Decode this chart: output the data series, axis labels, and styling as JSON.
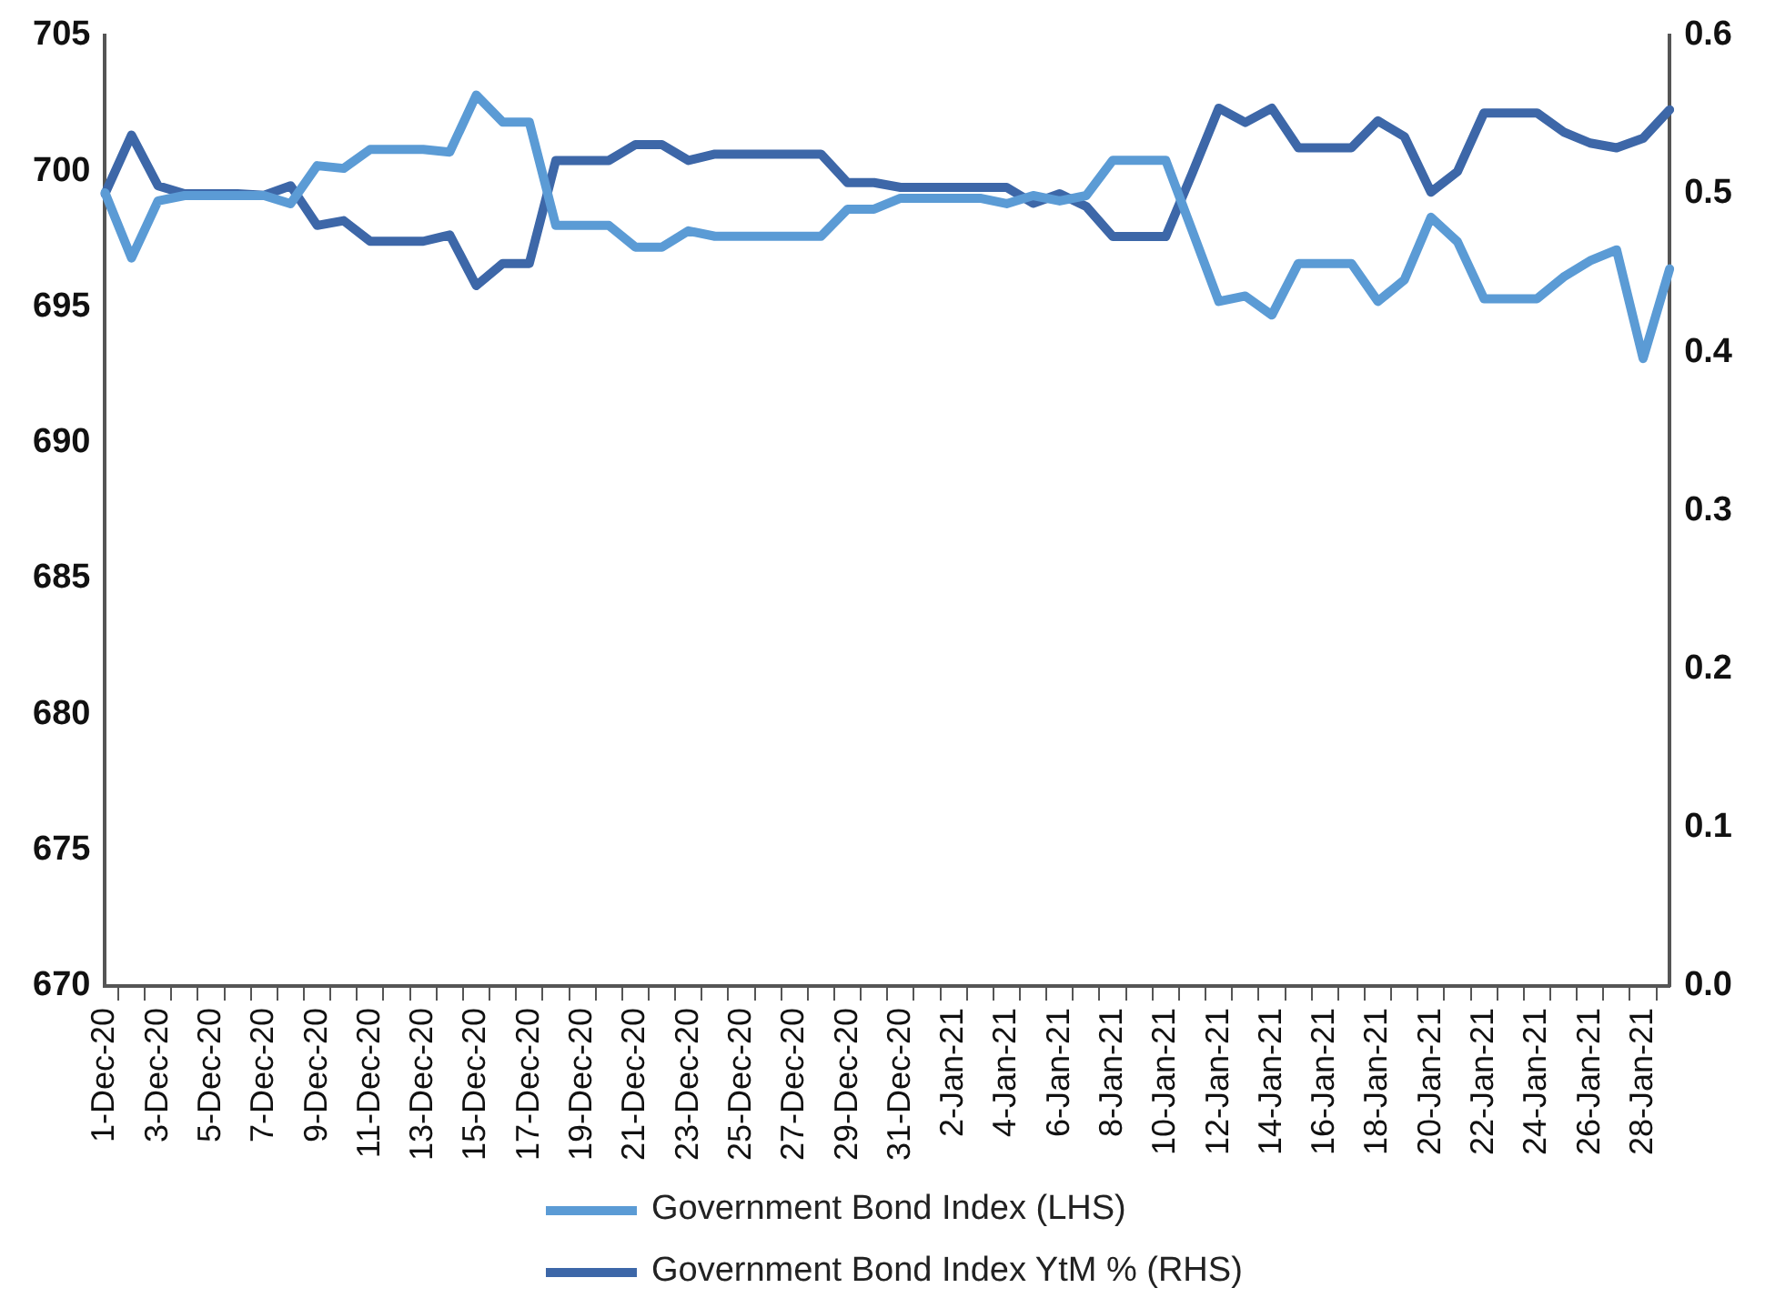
{
  "chart_data": {
    "type": "line",
    "categories": [
      "1-Dec-20",
      null,
      "3-Dec-20",
      null,
      "5-Dec-20",
      null,
      "7-Dec-20",
      null,
      "9-Dec-20",
      null,
      "11-Dec-20",
      null,
      "13-Dec-20",
      null,
      "15-Dec-20",
      null,
      "17-Dec-20",
      null,
      "19-Dec-20",
      null,
      "21-Dec-20",
      null,
      "23-Dec-20",
      null,
      "25-Dec-20",
      null,
      "27-Dec-20",
      null,
      "29-Dec-20",
      null,
      "31-Dec-20",
      null,
      "2-Jan-21",
      null,
      "4-Jan-21",
      null,
      "6-Jan-21",
      null,
      "8-Jan-21",
      null,
      "10-Jan-21",
      null,
      "12-Jan-21",
      null,
      "14-Jan-21",
      null,
      "16-Jan-21",
      null,
      "18-Jan-21",
      null,
      "20-Jan-21",
      null,
      "22-Jan-21",
      null,
      "24-Jan-21",
      null,
      "26-Jan-21",
      null,
      "28-Jan-21",
      null
    ],
    "series": [
      {
        "name": "Government Bond Index (LHS)",
        "color": "#5b9bd5",
        "values": [
          699.2,
          696.8,
          698.9,
          699.1,
          699.1,
          699.1,
          699.1,
          698.8,
          700.2,
          700.1,
          700.8,
          700.8,
          700.8,
          700.7,
          702.8,
          701.8,
          701.8,
          698.0,
          698.0,
          698.0,
          697.2,
          697.2,
          697.8,
          697.6,
          697.6,
          697.6,
          697.6,
          697.6,
          698.6,
          698.6,
          699.0,
          699.0,
          699.0,
          699.0,
          698.8,
          699.1,
          698.9,
          699.1,
          700.4,
          700.4,
          700.4,
          697.8,
          695.2,
          695.4,
          694.7,
          696.6,
          696.6,
          696.6,
          695.2,
          696.0,
          698.3,
          697.4,
          695.3,
          695.3,
          695.3,
          696.1,
          696.7,
          697.1,
          693.1,
          696.4
        ]
      },
      {
        "name": "Government Bond Index YtM % (RHS)",
        "color": "#3d67a8",
        "axis": "y2",
        "values": [
          0.5,
          0.537,
          0.505,
          0.5,
          0.5,
          0.5,
          0.499,
          0.505,
          0.48,
          0.483,
          0.47,
          0.47,
          0.47,
          0.474,
          0.442,
          0.456,
          0.456,
          0.521,
          0.521,
          0.521,
          0.531,
          0.531,
          0.521,
          0.525,
          0.525,
          0.525,
          0.525,
          0.525,
          0.507,
          0.507,
          0.504,
          0.504,
          0.504,
          0.504,
          0.504,
          0.494,
          0.5,
          0.492,
          0.473,
          0.473,
          0.473,
          0.513,
          0.554,
          0.545,
          0.554,
          0.529,
          0.529,
          0.529,
          0.546,
          0.536,
          0.501,
          0.514,
          0.551,
          0.551,
          0.551,
          0.539,
          0.532,
          0.529,
          0.535,
          0.553
        ]
      }
    ],
    "ylim": [
      670,
      705
    ],
    "yticks": [
      670,
      675,
      680,
      685,
      690,
      695,
      700,
      705
    ],
    "y2lim": [
      0,
      0.6
    ],
    "y2ticks": [
      {
        "value": 0,
        "label": "0.0"
      },
      0.1,
      0.2,
      0.3,
      0.4,
      0.5,
      0.6
    ],
    "grid": false,
    "legend": "bottom",
    "marker": "none",
    "line_style": "solid"
  }
}
